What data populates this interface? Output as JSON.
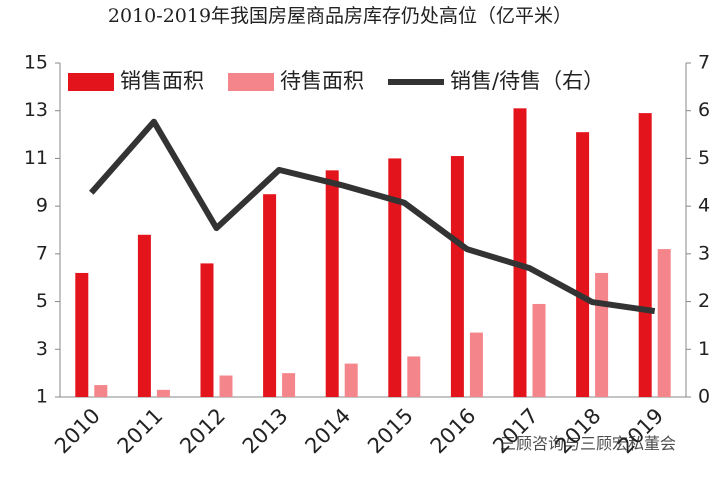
{
  "chart_data": {
    "type": "bar-line",
    "title": "2010-2019年我国房屋商品房库存仍处高位（亿平米）",
    "categories": [
      "2010",
      "2011",
      "2012",
      "2013",
      "2014",
      "2015",
      "2016",
      "2017",
      "2018",
      "2019"
    ],
    "series": [
      {
        "name": "销售面积",
        "type": "bar",
        "color": "#e3141c",
        "values": [
          6.2,
          7.8,
          6.6,
          9.5,
          10.5,
          11.0,
          11.1,
          13.1,
          12.1,
          12.9
        ]
      },
      {
        "name": "待售面积",
        "type": "bar",
        "color": "#f4858a",
        "values": [
          1.5,
          1.3,
          1.9,
          2.0,
          2.4,
          2.7,
          3.7,
          4.9,
          6.2,
          7.2
        ]
      },
      {
        "name": "销售/待售（右）",
        "type": "line",
        "axis": "y2",
        "color": "#333333",
        "values": [
          4.28,
          5.77,
          3.54,
          4.76,
          4.44,
          4.07,
          3.1,
          2.7,
          1.99,
          1.8
        ]
      }
    ],
    "ylim": [
      1,
      15
    ],
    "yticks": [
      1,
      3,
      5,
      7,
      9,
      11,
      13,
      15
    ],
    "y2lim": [
      0,
      7
    ],
    "y2ticks": [
      0,
      1,
      2,
      3,
      4,
      5,
      6,
      7
    ],
    "legend": "top",
    "watermark": "三顾咨询与三顾宏私董会"
  }
}
